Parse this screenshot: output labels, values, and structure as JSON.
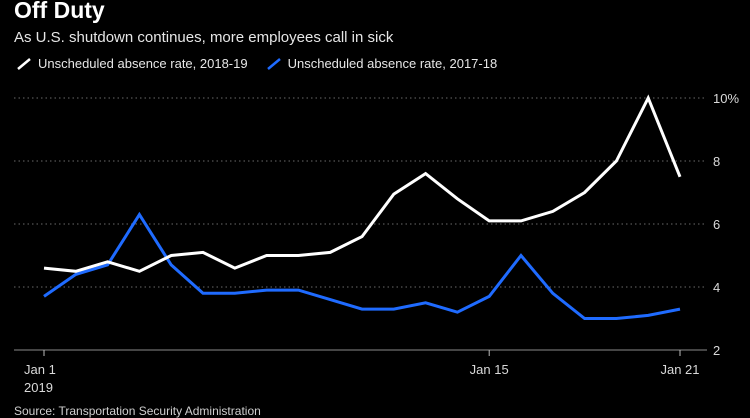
{
  "title": "Off Duty",
  "subtitle": "As U.S. shutdown continues, more employees call in sick",
  "source": "Source: Transportation Security Administration",
  "chart_data": {
    "type": "line",
    "x": [
      0,
      1,
      2,
      3,
      4,
      5,
      6,
      7,
      8,
      9,
      10,
      11,
      12,
      13,
      14,
      15,
      16,
      17,
      18,
      19,
      20
    ],
    "x_tick_labels": [
      {
        "x": 0,
        "label": "Jan 1",
        "sublabel": "2019"
      },
      {
        "x": 14,
        "label": "Jan 15",
        "sublabel": ""
      },
      {
        "x": 20,
        "label": "Jan 21",
        "sublabel": ""
      }
    ],
    "y_ticks": [
      2,
      4,
      6,
      8,
      10
    ],
    "y_tick_labels": [
      "2",
      "4",
      "6",
      "8",
      "10%"
    ],
    "ylim": [
      2,
      10
    ],
    "grid": true,
    "legend_position": "top-left",
    "series": [
      {
        "name": "Unscheduled absence rate, 2018-19",
        "color": "#ffffff",
        "values": [
          4.6,
          4.5,
          4.8,
          4.5,
          5.0,
          5.1,
          4.6,
          5.0,
          5.0,
          5.1,
          5.6,
          6.95,
          7.6,
          6.8,
          6.1,
          6.1,
          6.4,
          7.0,
          8.0,
          10.0,
          7.5
        ]
      },
      {
        "name": "Unscheduled absence rate, 2017-18",
        "color": "#1f6bff",
        "values": [
          3.7,
          4.4,
          4.7,
          6.3,
          4.7,
          3.8,
          3.8,
          3.9,
          3.9,
          3.6,
          3.3,
          3.3,
          3.5,
          3.2,
          3.7,
          5.0,
          3.8,
          3.0,
          3.0,
          3.1,
          3.3
        ]
      }
    ]
  }
}
